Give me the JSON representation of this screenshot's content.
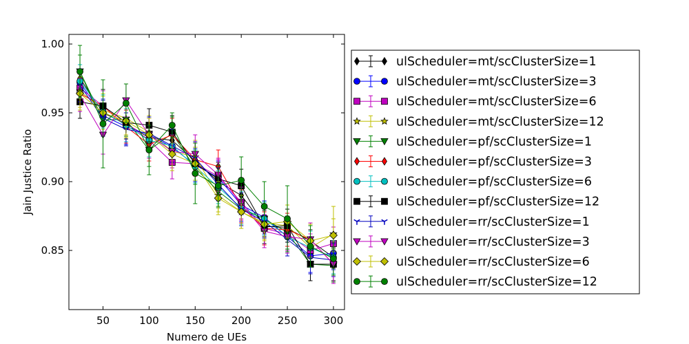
{
  "chart_data": {
    "type": "line",
    "title": "",
    "xlabel": "Numero de UEs",
    "ylabel": "Jain Justice Ratio",
    "xlim": [
      13,
      312
    ],
    "ylim": [
      0.807,
      1.007
    ],
    "xticks": [
      50,
      100,
      150,
      200,
      250,
      300
    ],
    "xtick_labels": [
      "50",
      "100",
      "150",
      "200",
      "250",
      "300"
    ],
    "yticks": [
      0.85,
      0.9,
      0.95,
      1.0
    ],
    "ytick_labels": [
      "0.85",
      "0.90",
      "0.95",
      "1.00"
    ],
    "grid": false,
    "legend_position": "outside-right",
    "x": [
      25,
      50,
      75,
      100,
      125,
      150,
      175,
      200,
      225,
      250,
      275,
      300
    ],
    "series": [
      {
        "name": "ulScheduler=mt/scClusterSize=1",
        "color": "#000000",
        "marker": "thin_diamond",
        "values": [
          0.975,
          0.95,
          0.942,
          0.932,
          0.93,
          0.915,
          0.9,
          0.89,
          0.868,
          0.866,
          0.857,
          0.845
        ],
        "errors": [
          0.01,
          0.009,
          0.008,
          0.008,
          0.008,
          0.008,
          0.008,
          0.008,
          0.008,
          0.008,
          0.008,
          0.008
        ]
      },
      {
        "name": "ulScheduler=mt/scClusterSize=3",
        "color": "#0000ff",
        "marker": "circle",
        "values": [
          0.972,
          0.948,
          0.94,
          0.934,
          0.925,
          0.912,
          0.903,
          0.883,
          0.874,
          0.86,
          0.846,
          0.848
        ],
        "errors": [
          0.013,
          0.012,
          0.013,
          0.012,
          0.012,
          0.012,
          0.012,
          0.012,
          0.012,
          0.012,
          0.012,
          0.012
        ]
      },
      {
        "name": "ulScheduler=mt/scClusterSize=6",
        "color": "#bf00bf",
        "marker": "square",
        "values": [
          0.968,
          0.955,
          0.943,
          0.93,
          0.914,
          0.913,
          0.904,
          0.885,
          0.866,
          0.862,
          0.85,
          0.855
        ],
        "errors": [
          0.012,
          0.011,
          0.012,
          0.013,
          0.012,
          0.012,
          0.012,
          0.012,
          0.012,
          0.012,
          0.012,
          0.012
        ]
      },
      {
        "name": "ulScheduler=mt/scClusterSize=12",
        "color": "#bfbf00",
        "marker": "star",
        "values": [
          0.966,
          0.952,
          0.946,
          0.936,
          0.922,
          0.918,
          0.89,
          0.878,
          0.87,
          0.868,
          0.852,
          0.862
        ],
        "errors": [
          0.012,
          0.012,
          0.012,
          0.012,
          0.012,
          0.012,
          0.012,
          0.012,
          0.012,
          0.012,
          0.012,
          0.02
        ]
      },
      {
        "name": "ulScheduler=pf/scClusterSize=1",
        "color": "#008000",
        "marker": "triangle_down",
        "values": [
          0.98,
          0.945,
          0.945,
          0.923,
          0.935,
          0.91,
          0.893,
          0.88,
          0.873,
          0.863,
          0.84,
          0.839
        ],
        "errors": [
          0.012,
          0.012,
          0.012,
          0.012,
          0.012,
          0.012,
          0.012,
          0.012,
          0.012,
          0.012,
          0.012,
          0.012
        ]
      },
      {
        "name": "ulScheduler=pf/scClusterSize=3",
        "color": "#ff0000",
        "marker": "thin_diamond",
        "values": [
          0.964,
          0.955,
          0.94,
          0.927,
          0.934,
          0.916,
          0.911,
          0.882,
          0.866,
          0.865,
          0.858,
          0.84
        ],
        "errors": [
          0.012,
          0.012,
          0.012,
          0.012,
          0.012,
          0.012,
          0.012,
          0.012,
          0.012,
          0.012,
          0.012,
          0.012
        ]
      },
      {
        "name": "ulScheduler=pf/scClusterSize=6",
        "color": "#00bfbf",
        "marker": "circle",
        "values": [
          0.973,
          0.951,
          0.941,
          0.93,
          0.926,
          0.911,
          0.896,
          0.881,
          0.873,
          0.86,
          0.852,
          0.845
        ],
        "errors": [
          0.012,
          0.012,
          0.012,
          0.012,
          0.012,
          0.012,
          0.012,
          0.012,
          0.012,
          0.012,
          0.012,
          0.012
        ]
      },
      {
        "name": "ulScheduler=pf/scClusterSize=12",
        "color": "#000000",
        "marker": "square",
        "values": [
          0.958,
          0.955,
          0.943,
          0.941,
          0.936,
          0.913,
          0.902,
          0.897,
          0.867,
          0.868,
          0.84,
          0.84
        ],
        "errors": [
          0.012,
          0.012,
          0.012,
          0.012,
          0.012,
          0.012,
          0.012,
          0.012,
          0.012,
          0.012,
          0.012,
          0.012
        ]
      },
      {
        "name": "ulScheduler=rr/scClusterSize=1",
        "color": "#0000bf",
        "marker": "tri_down",
        "values": [
          0.97,
          0.946,
          0.938,
          0.935,
          0.926,
          0.917,
          0.898,
          0.88,
          0.871,
          0.858,
          0.845,
          0.843
        ],
        "errors": [
          0.012,
          0.013,
          0.012,
          0.012,
          0.012,
          0.012,
          0.012,
          0.012,
          0.012,
          0.012,
          0.012,
          0.012
        ]
      },
      {
        "name": "ulScheduler=rr/scClusterSize=3",
        "color": "#bf00bf",
        "marker": "triangle_down",
        "values": [
          0.963,
          0.934,
          0.959,
          0.934,
          0.922,
          0.92,
          0.905,
          0.884,
          0.864,
          0.86,
          0.858,
          0.84
        ],
        "errors": [
          0.012,
          0.014,
          0.012,
          0.012,
          0.012,
          0.014,
          0.012,
          0.012,
          0.012,
          0.012,
          0.012,
          0.014
        ]
      },
      {
        "name": "ulScheduler=rr/scClusterSize=6",
        "color": "#bfbf00",
        "marker": "diamond",
        "values": [
          0.964,
          0.95,
          0.944,
          0.934,
          0.92,
          0.913,
          0.888,
          0.878,
          0.869,
          0.871,
          0.857,
          0.861
        ],
        "errors": [
          0.012,
          0.012,
          0.012,
          0.012,
          0.012,
          0.012,
          0.012,
          0.012,
          0.012,
          0.012,
          0.012,
          0.012
        ]
      },
      {
        "name": "ulScheduler=rr/scClusterSize=12",
        "color": "#008000",
        "marker": "circle",
        "values": [
          0.98,
          0.942,
          0.957,
          0.923,
          0.941,
          0.906,
          0.897,
          0.901,
          0.882,
          0.873,
          0.853,
          0.844
        ],
        "errors": [
          0.019,
          0.032,
          0.014,
          0.018,
          0.009,
          0.022,
          0.015,
          0.017,
          0.018,
          0.024,
          0.015,
          0.012
        ]
      }
    ]
  }
}
